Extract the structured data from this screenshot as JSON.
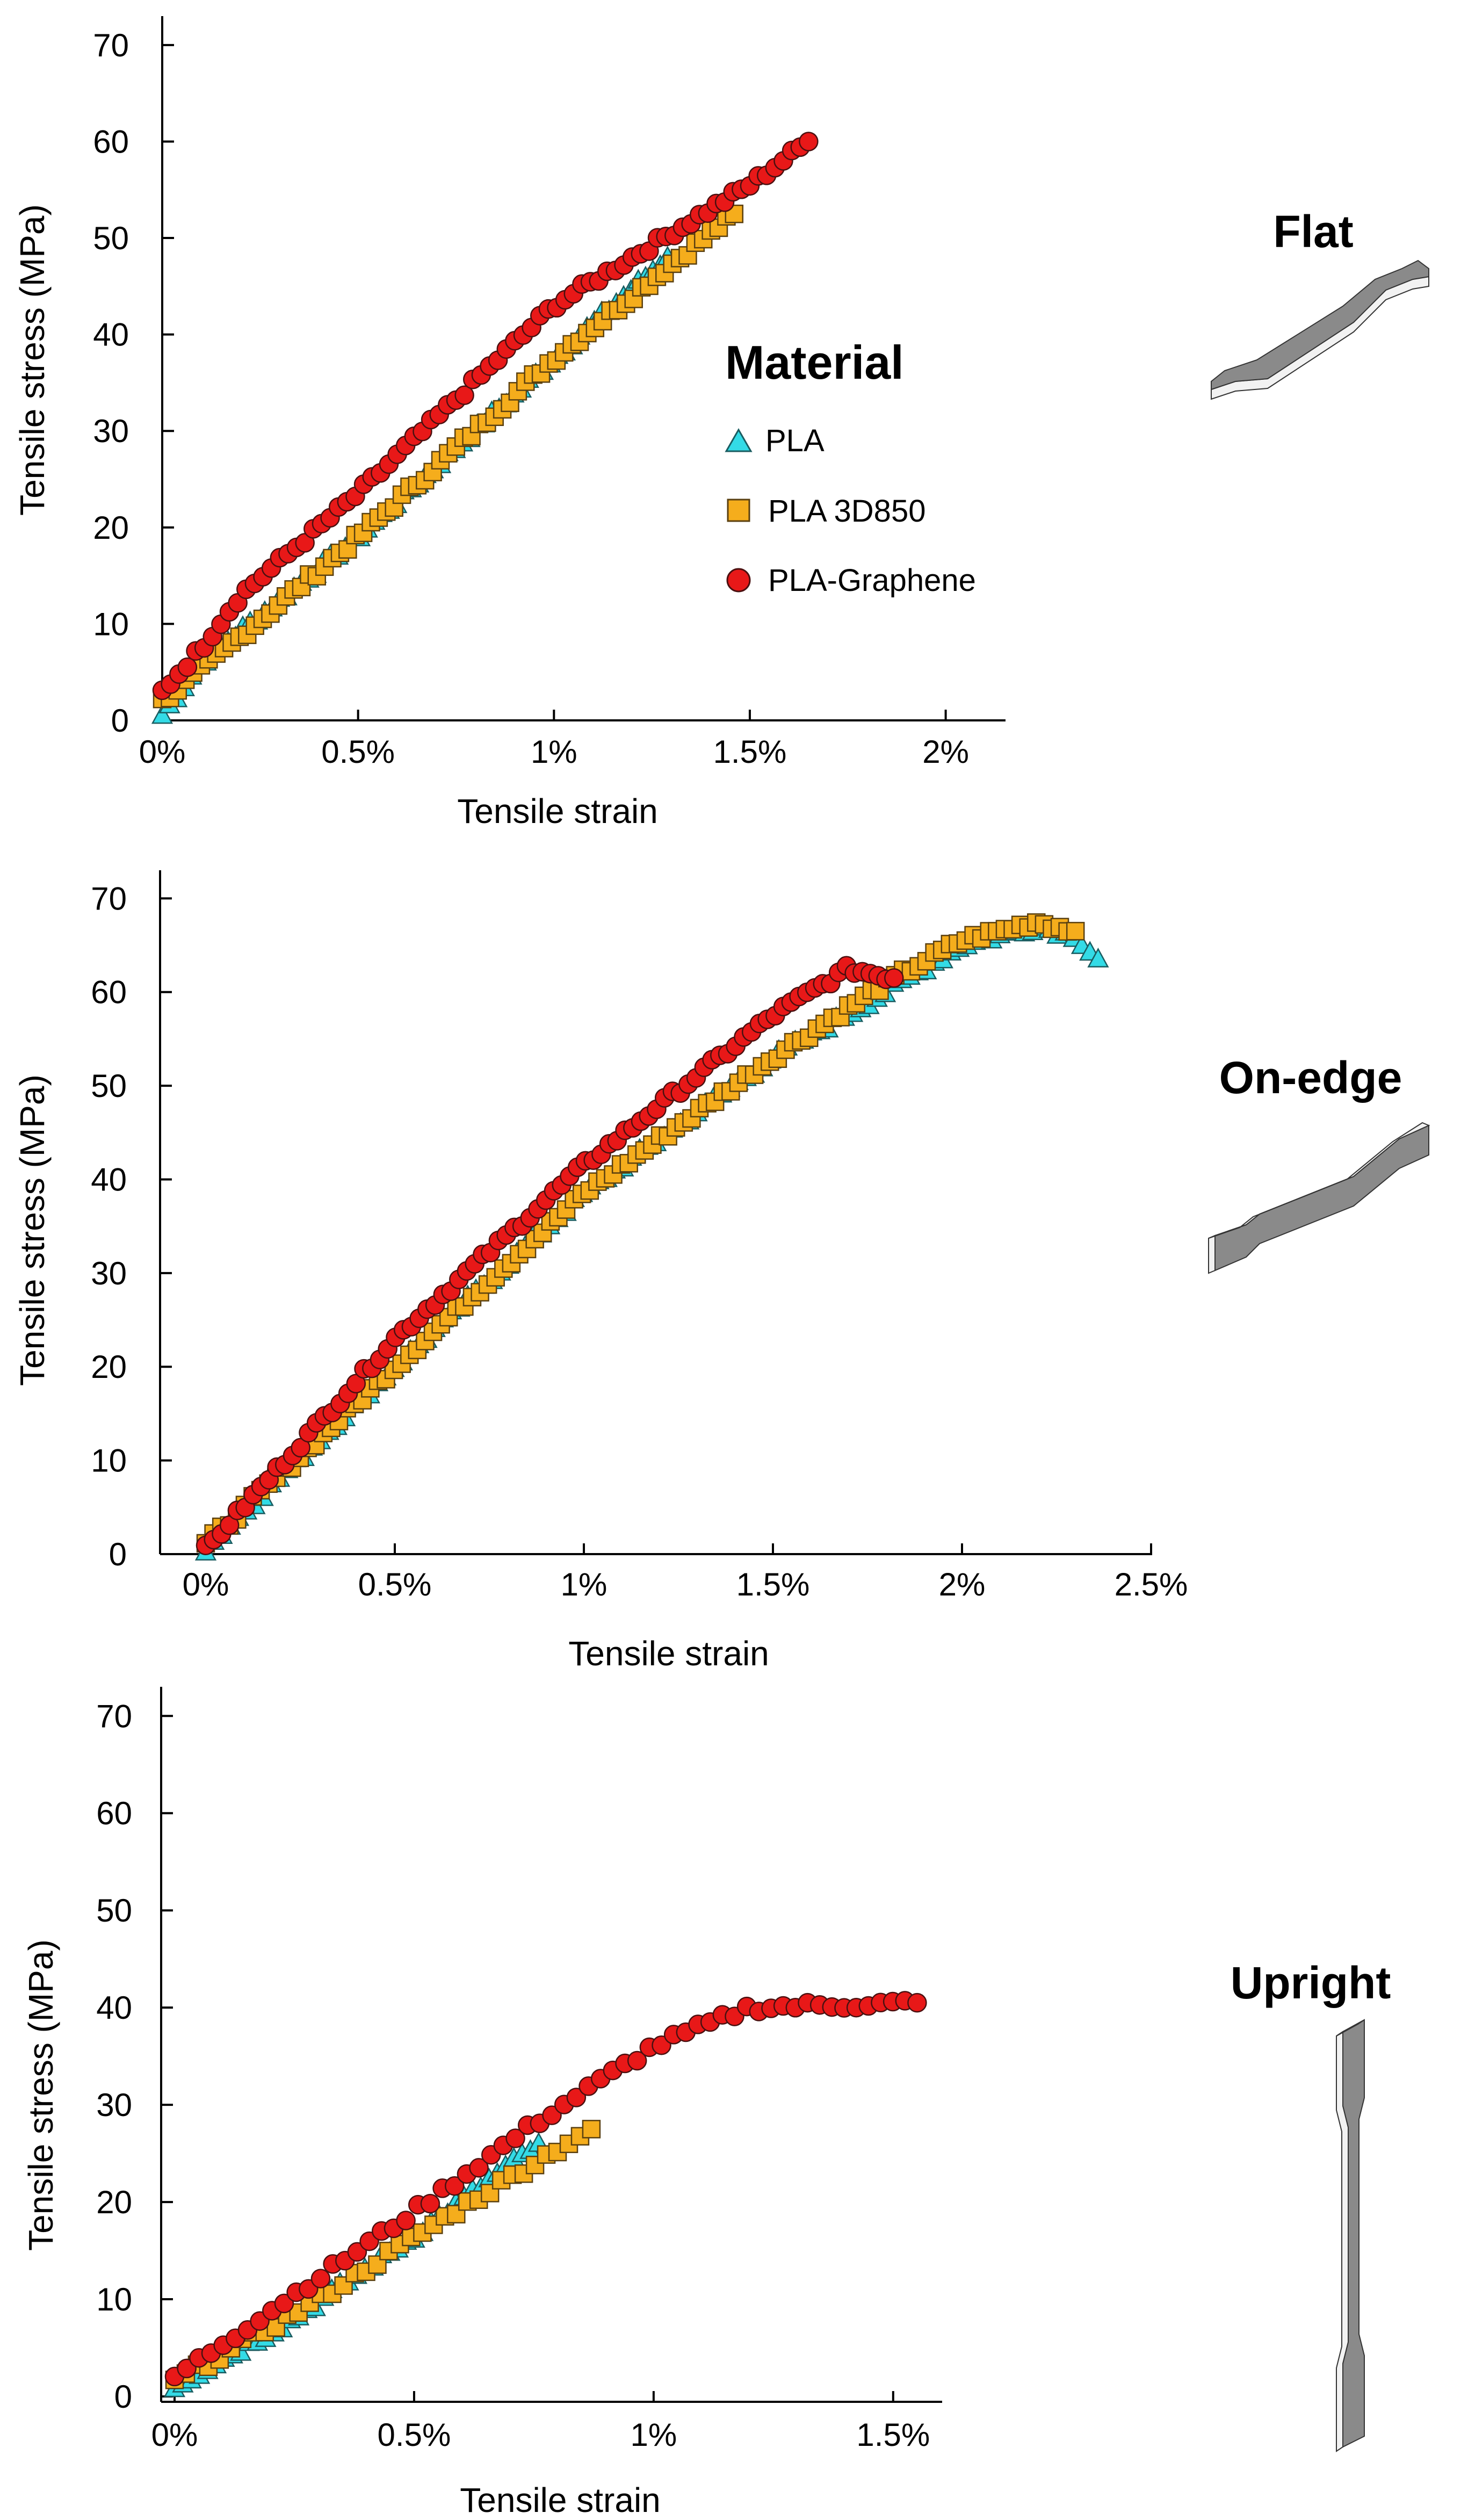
{
  "colors": {
    "pla": "#33dbe6",
    "pla_3d850": "#f5ad1c",
    "pla_graphene": "#e81818",
    "marker_edge": "#4a3a20",
    "specimen_top": "#8a8a8a",
    "specimen_side": "#f2f2f2"
  },
  "legend": {
    "title": "Material",
    "items": [
      {
        "label": "PLA",
        "marker": "triangle",
        "color_key": "pla"
      },
      {
        "label": "PLA 3D850",
        "marker": "square",
        "color_key": "pla_3d850"
      },
      {
        "label": "PLA-Graphene",
        "marker": "circle",
        "color_key": "pla_graphene"
      }
    ]
  },
  "chart_data": [
    {
      "type": "scatter",
      "panel_id": "flat",
      "orientation_label": "Flat",
      "xlabel": "Tensile strain",
      "ylabel": "Tensile stress (MPa)",
      "xlim": [
        0,
        2.15
      ],
      "ylim": [
        0,
        73
      ],
      "x_ticks": [
        0,
        0.5,
        1,
        1.5,
        2
      ],
      "x_tick_labels": [
        "0%",
        "0.5%",
        "1%",
        "1.5%",
        "2%"
      ],
      "y_ticks": [
        0,
        10,
        20,
        30,
        40,
        50,
        60,
        70
      ],
      "y_tick_labels": [
        "0",
        "10",
        "20",
        "30",
        "40",
        "50",
        "60",
        "70"
      ],
      "grid": false,
      "series": [
        {
          "name": "PLA",
          "marker": "triangle",
          "end_strain": 1.29,
          "end_stress": 48,
          "n": 70,
          "curve": [
            [
              0,
              0.5
            ],
            [
              0.1,
              6
            ],
            [
              0.5,
              19
            ],
            [
              1.0,
              37.5
            ],
            [
              1.29,
              48
            ]
          ]
        },
        {
          "name": "PLA 3D850",
          "marker": "square",
          "end_strain": 1.46,
          "end_stress": 52.5,
          "n": 75,
          "curve": [
            [
              0,
              2
            ],
            [
              0.15,
              7
            ],
            [
              0.5,
              19
            ],
            [
              1.0,
              37.5
            ],
            [
              1.46,
              52.5
            ]
          ]
        },
        {
          "name": "PLA-Graphene",
          "marker": "circle",
          "end_strain": 1.65,
          "end_stress": 60,
          "n": 78,
          "curve": [
            [
              0,
              3
            ],
            [
              0.1,
              7.5
            ],
            [
              0.2,
              13
            ],
            [
              0.5,
              23.5
            ],
            [
              1.0,
              43
            ],
            [
              1.5,
              55.5
            ],
            [
              1.65,
              60
            ]
          ]
        }
      ]
    },
    {
      "type": "scatter",
      "panel_id": "on-edge",
      "orientation_label": "On-edge",
      "xlabel": "Tensile strain",
      "ylabel": "Tensile stress (MPa)",
      "xlim": [
        0,
        2.5
      ],
      "ylim": [
        0,
        73
      ],
      "x_ticks": [
        0,
        0.5,
        1,
        1.5,
        2,
        2.5
      ],
      "x_tick_labels": [
        "0%",
        "0.5%",
        "1%",
        "1.5%",
        "2%",
        "2.5%"
      ],
      "y_ticks": [
        0,
        10,
        20,
        30,
        40,
        50,
        60,
        70
      ],
      "y_tick_labels": [
        "0",
        "10",
        "20",
        "30",
        "40",
        "50",
        "60",
        "70"
      ],
      "grid": false,
      "series": [
        {
          "name": "PLA",
          "marker": "triangle",
          "end_strain": 2.36,
          "end_stress": 63.5,
          "n": 110,
          "curve": [
            [
              0,
              0.5
            ],
            [
              0.5,
              20
            ],
            [
              1.0,
              38.5
            ],
            [
              1.5,
              53
            ],
            [
              1.8,
              60
            ],
            [
              2.0,
              65
            ],
            [
              2.2,
              67
            ],
            [
              2.3,
              66
            ],
            [
              2.36,
              63.5
            ]
          ]
        },
        {
          "name": "PLA 3D850",
          "marker": "square",
          "end_strain": 2.3,
          "end_stress": 66.5,
          "n": 112,
          "curve": [
            [
              0,
              1
            ],
            [
              0.5,
              20
            ],
            [
              1.0,
              38.5
            ],
            [
              1.5,
              53
            ],
            [
              1.8,
              61
            ],
            [
              2.0,
              65.5
            ],
            [
              2.2,
              67.5
            ],
            [
              2.3,
              66.5
            ]
          ]
        },
        {
          "name": "PLA-Graphene",
          "marker": "circle",
          "end_strain": 1.82,
          "end_stress": 61.5,
          "n": 88,
          "curve": [
            [
              0,
              0.5
            ],
            [
              0.5,
              23
            ],
            [
              1.0,
              41.5
            ],
            [
              1.5,
              57.5
            ],
            [
              1.7,
              62.5
            ],
            [
              1.82,
              61.5
            ]
          ]
        }
      ]
    },
    {
      "type": "scatter",
      "panel_id": "upright",
      "orientation_label": "Upright",
      "xlabel": "Tensile strain",
      "ylabel": "Tensile stress (MPa)",
      "xlim": [
        0,
        1.6
      ],
      "ylim": [
        0,
        73
      ],
      "x_ticks": [
        0,
        0.5,
        1,
        1.5
      ],
      "x_tick_labels": [
        "0%",
        "0.5%",
        "1%",
        "1.5%"
      ],
      "y_ticks": [
        0,
        10,
        20,
        30,
        40,
        50,
        60,
        70
      ],
      "y_tick_labels": [
        "0",
        "10",
        "20",
        "30",
        "40",
        "50",
        "60",
        "70"
      ],
      "grid": false,
      "series": [
        {
          "name": "PLA",
          "marker": "triangle",
          "end_strain": 0.76,
          "end_stress": 26,
          "n": 45,
          "curve": [
            [
              0,
              1
            ],
            [
              0.25,
              8
            ],
            [
              0.5,
              16.5
            ],
            [
              0.76,
              26
            ]
          ]
        },
        {
          "name": "PLA 3D850",
          "marker": "square",
          "end_strain": 0.87,
          "end_stress": 27.5,
          "n": 38,
          "curve": [
            [
              0,
              1.5
            ],
            [
              0.3,
              10
            ],
            [
              0.6,
              19.5
            ],
            [
              0.8,
              25.5
            ],
            [
              0.87,
              27.5
            ]
          ]
        },
        {
          "name": "PLA-Graphene",
          "marker": "circle",
          "end_strain": 1.55,
          "end_stress": 40.5,
          "n": 62,
          "curve": [
            [
              0,
              2
            ],
            [
              0.25,
              10.5
            ],
            [
              0.5,
              19
            ],
            [
              0.75,
              28
            ],
            [
              1.0,
              36
            ],
            [
              1.2,
              40
            ],
            [
              1.55,
              40.5
            ]
          ]
        }
      ]
    }
  ]
}
